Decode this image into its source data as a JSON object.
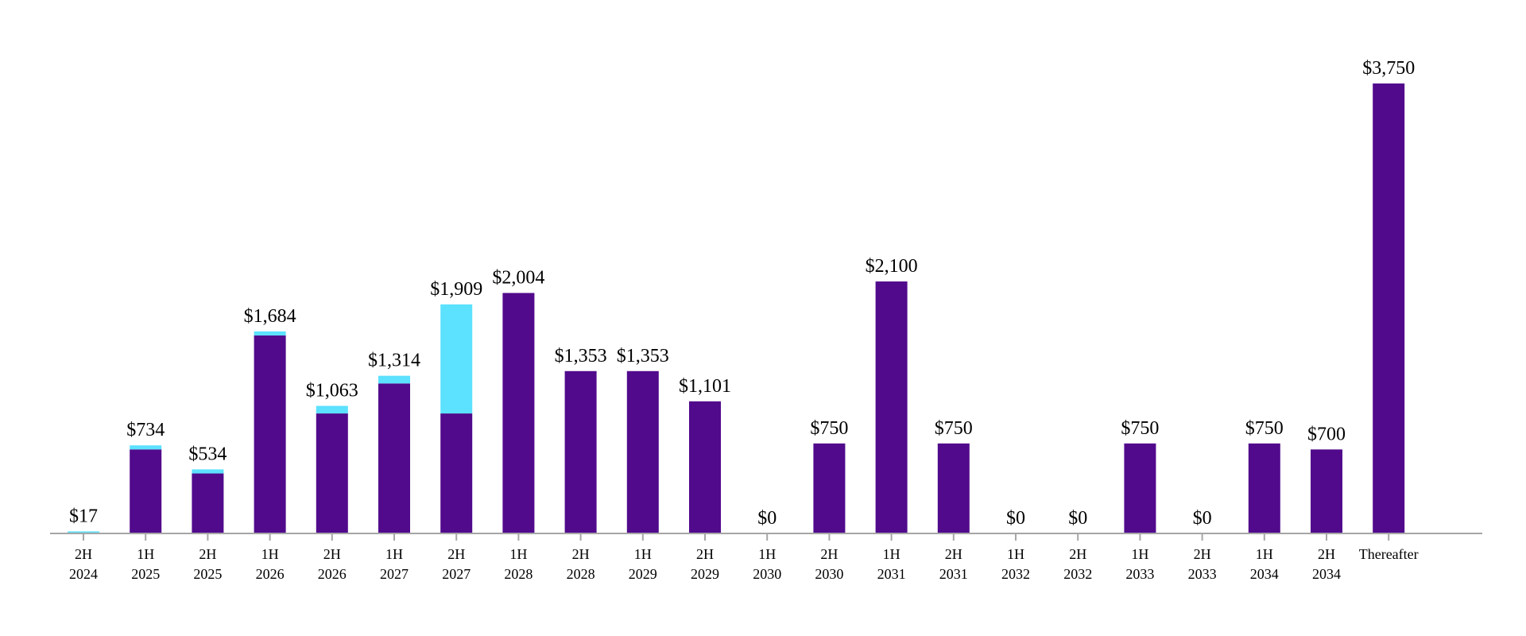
{
  "chart_data": {
    "type": "bar",
    "stacked": true,
    "title": "",
    "xlabel": "",
    "ylabel": "",
    "ylim": [
      0,
      3750
    ],
    "grid": false,
    "legend": "none",
    "colors": {
      "purple": "#510A8C",
      "cyan": "#5CE1FF",
      "axis": "#a6a6a6"
    },
    "categories": [
      [
        "2H",
        "2024"
      ],
      [
        "1H",
        "2025"
      ],
      [
        "2H",
        "2025"
      ],
      [
        "1H",
        "2026"
      ],
      [
        "2H",
        "2026"
      ],
      [
        "1H",
        "2027"
      ],
      [
        "2H",
        "2027"
      ],
      [
        "1H",
        "2028"
      ],
      [
        "2H",
        "2028"
      ],
      [
        "1H",
        "2029"
      ],
      [
        "2H",
        "2029"
      ],
      [
        "1H",
        "2030"
      ],
      [
        "2H",
        "2030"
      ],
      [
        "1H",
        "2031"
      ],
      [
        "2H",
        "2031"
      ],
      [
        "1H",
        "2032"
      ],
      [
        "2H",
        "2032"
      ],
      [
        "1H",
        "2033"
      ],
      [
        "2H",
        "2033"
      ],
      [
        "1H",
        "2034"
      ],
      [
        "2H",
        "2034"
      ],
      [
        "Thereafter",
        ""
      ]
    ],
    "series": [
      {
        "color": "#510A8C",
        "values": [
          0,
          700,
          500,
          1650,
          1000,
          1250,
          1000,
          2004,
          1353,
          1353,
          1101,
          0,
          750,
          2100,
          750,
          0,
          0,
          750,
          0,
          750,
          700,
          3750
        ]
      },
      {
        "color": "#5CE1FF",
        "values": [
          17,
          34,
          34,
          34,
          63,
          64,
          909,
          0,
          0,
          0,
          0,
          0,
          0,
          0,
          0,
          0,
          0,
          0,
          0,
          0,
          0,
          0
        ]
      }
    ],
    "totals": [
      17,
      734,
      534,
      1684,
      1063,
      1314,
      1909,
      2004,
      1353,
      1353,
      1101,
      0,
      750,
      2100,
      750,
      0,
      0,
      750,
      0,
      750,
      700,
      3750
    ],
    "data_labels": [
      "$17",
      "$734",
      "$534",
      "$1,684",
      "$1,063",
      "$1,314",
      "$1,909",
      "$2,004",
      "$1,353",
      "$1,353",
      "$1,101",
      "$0",
      "$750",
      "$2,100",
      "$750",
      "$0",
      "$0",
      "$750",
      "$0",
      "$750",
      "$700",
      "$3,750"
    ]
  }
}
